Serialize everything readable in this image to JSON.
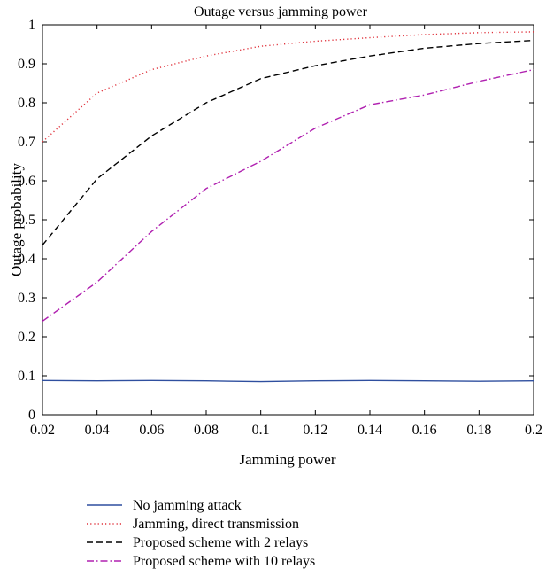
{
  "chart_data": {
    "type": "line",
    "title": "Outage versus jamming power",
    "xlabel": "Jamming power",
    "ylabel": "Outage probability",
    "xlim": [
      0.02,
      0.2
    ],
    "ylim": [
      0,
      1
    ],
    "x_ticks": [
      "0.02",
      "0.04",
      "0.06",
      "0.08",
      "0.1",
      "0.12",
      "0.14",
      "0.16",
      "0.18",
      "0.2"
    ],
    "y_ticks": [
      "0",
      "0.1",
      "0.2",
      "0.3",
      "0.4",
      "0.5",
      "0.6",
      "0.7",
      "0.8",
      "0.9",
      "1"
    ],
    "grid": false,
    "legend_position": "below",
    "x": [
      0.02,
      0.04,
      0.06,
      0.08,
      0.1,
      0.12,
      0.14,
      0.16,
      0.18,
      0.2
    ],
    "series": [
      {
        "name": "No jamming attack",
        "color": "#2f4f9f",
        "style": "solid",
        "values": [
          0.088,
          0.087,
          0.088,
          0.087,
          0.085,
          0.087,
          0.088,
          0.087,
          0.086,
          0.087
        ]
      },
      {
        "name": "Jamming, direct transmission",
        "color": "#e0303a",
        "style": "dotted",
        "values": [
          0.7,
          0.825,
          0.885,
          0.92,
          0.945,
          0.958,
          0.967,
          0.975,
          0.98,
          0.982
        ]
      },
      {
        "name": "Proposed scheme with 2 relays",
        "color": "#000000",
        "style": "dashed",
        "values": [
          0.435,
          0.605,
          0.715,
          0.8,
          0.862,
          0.895,
          0.92,
          0.94,
          0.952,
          0.96
        ]
      },
      {
        "name": "Proposed scheme with 10 relays",
        "color": "#b020b0",
        "style": "dashdot",
        "values": [
          0.24,
          0.34,
          0.47,
          0.58,
          0.65,
          0.735,
          0.795,
          0.82,
          0.855,
          0.885
        ]
      }
    ]
  }
}
